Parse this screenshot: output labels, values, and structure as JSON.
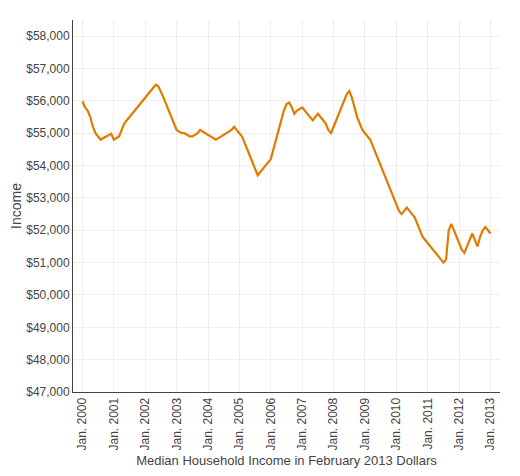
{
  "chart_data": {
    "type": "line",
    "xlabel": "Median Household Income in February 2013 Dollars",
    "ylabel": "Income",
    "color": "#E07B00",
    "grid": true,
    "xlim": [
      1999.7,
      2013.3
    ],
    "xticks": [
      {
        "value": 2000,
        "label": "Jan. 2000"
      },
      {
        "value": 2001,
        "label": "Jan. 2001"
      },
      {
        "value": 2002,
        "label": "Jan. 2002"
      },
      {
        "value": 2003,
        "label": "Jan. 2003"
      },
      {
        "value": 2004,
        "label": "Jan. 2004"
      },
      {
        "value": 2005,
        "label": "Jan. 2005"
      },
      {
        "value": 2006,
        "label": "Jan. 2006"
      },
      {
        "value": 2007,
        "label": "Jan. 2007"
      },
      {
        "value": 2008,
        "label": "Jan. 2008"
      },
      {
        "value": 2009,
        "label": "Jan. 2009"
      },
      {
        "value": 2010,
        "label": "Jan. 2010"
      },
      {
        "value": 2011,
        "label": "Jan. 2011"
      },
      {
        "value": 2012,
        "label": "Jan. 2012"
      },
      {
        "value": 2013,
        "label": "Jan. 2013"
      }
    ],
    "ylim": [
      47000,
      58500
    ],
    "yticks": [
      {
        "value": 47000,
        "label": "$47,000"
      },
      {
        "value": 48000,
        "label": "$48,000"
      },
      {
        "value": 49000,
        "label": "$49,000"
      },
      {
        "value": 50000,
        "label": "$50,000"
      },
      {
        "value": 51000,
        "label": "$51,000"
      },
      {
        "value": 52000,
        "label": "$52,000"
      },
      {
        "value": 53000,
        "label": "$53,000"
      },
      {
        "value": 54000,
        "label": "$54,000"
      },
      {
        "value": 55000,
        "label": "$55,000"
      },
      {
        "value": 56000,
        "label": "$56,000"
      },
      {
        "value": 57000,
        "label": "$57,000"
      },
      {
        "value": 58000,
        "label": "$58,000"
      }
    ],
    "x": [
      2000.0,
      2000.0833333333333,
      2000.1666666666667,
      2000.25,
      2000.3333333333333,
      2000.4166666666667,
      2000.5,
      2000.5833333333333,
      2000.6666666666667,
      2000.75,
      2000.8333333333333,
      2000.9166666666667,
      2001.0,
      2001.0833333333333,
      2001.1666666666667,
      2001.25,
      2001.3333333333333,
      2001.4166666666667,
      2001.5,
      2001.5833333333333,
      2001.6666666666667,
      2001.75,
      2001.8333333333333,
      2001.9166666666667,
      2002.0,
      2002.0833333333333,
      2002.1666666666667,
      2002.25,
      2002.3333333333333,
      2002.4166666666667,
      2002.5,
      2002.5833333333333,
      2002.6666666666667,
      2002.75,
      2002.8333333333333,
      2002.9166666666667,
      2003.0,
      2003.0833333333333,
      2003.1666666666667,
      2003.25,
      2003.3333333333333,
      2003.4166666666667,
      2003.5,
      2003.5833333333333,
      2003.6666666666667,
      2003.75,
      2003.8333333333333,
      2003.9166666666667,
      2004.0,
      2004.0833333333333,
      2004.1666666666667,
      2004.25,
      2004.3333333333333,
      2004.4166666666667,
      2004.5,
      2004.5833333333333,
      2004.6666666666667,
      2004.75,
      2004.8333333333333,
      2004.9166666666667,
      2005.0,
      2005.0833333333333,
      2005.1666666666667,
      2005.25,
      2005.3333333333333,
      2005.4166666666667,
      2005.5,
      2005.5833333333333,
      2005.6666666666667,
      2005.75,
      2005.8333333333333,
      2005.9166666666667,
      2006.0,
      2006.0833333333333,
      2006.1666666666667,
      2006.25,
      2006.3333333333333,
      2006.4166666666667,
      2006.5,
      2006.5833333333333,
      2006.6666666666667,
      2006.75,
      2006.8333333333333,
      2006.9166666666667,
      2007.0,
      2007.0833333333333,
      2007.1666666666667,
      2007.25,
      2007.3333333333333,
      2007.4166666666667,
      2007.5,
      2007.5833333333333,
      2007.6666666666667,
      2007.75,
      2007.8333333333333,
      2007.9166666666667,
      2008.0,
      2008.0833333333333,
      2008.1666666666667,
      2008.25,
      2008.3333333333333,
      2008.4166666666667,
      2008.5,
      2008.5833333333333,
      2008.6666666666667,
      2008.75,
      2008.8333333333333,
      2008.9166666666667,
      2009.0,
      2009.0833333333333,
      2009.1666666666667,
      2009.25,
      2009.3333333333333,
      2009.4166666666667,
      2009.5,
      2009.5833333333333,
      2009.6666666666667,
      2009.75,
      2009.8333333333333,
      2009.9166666666667,
      2010.0,
      2010.0833333333333,
      2010.1666666666667,
      2010.25,
      2010.3333333333333,
      2010.4166666666667,
      2010.5,
      2010.5833333333333,
      2010.6666666666667,
      2010.75,
      2010.8333333333333,
      2010.9166666666667,
      2011.0,
      2011.0833333333333,
      2011.1666666666667,
      2011.25,
      2011.3333333333333,
      2011.4166666666667,
      2011.5,
      2011.5833333333333,
      2011.6666666666667,
      2011.75,
      2011.8333333333333,
      2011.9166666666667,
      2012.0,
      2012.0833333333333,
      2012.1666666666667,
      2012.25,
      2012.3333333333333,
      2012.4166666666667,
      2012.5,
      2012.5833333333333,
      2012.6666666666667,
      2012.75,
      2012.8333333333333,
      2012.9166666666667,
      2013.0
    ],
    "values": [
      55987,
      55800,
      55700,
      55500,
      55200,
      55000,
      54900,
      54800,
      54850,
      54900,
      54950,
      54980,
      54800,
      54850,
      54900,
      55100,
      55300,
      55400,
      55500,
      55600,
      55700,
      55800,
      55900,
      56000,
      56100,
      56200,
      56300,
      56400,
      56500,
      56450,
      56300,
      56100,
      55900,
      55700,
      55500,
      55300,
      55100,
      55050,
      55000,
      55000,
      54950,
      54900,
      54900,
      54950,
      55000,
      55100,
      55050,
      55000,
      54950,
      54900,
      54850,
      54800,
      54850,
      54900,
      54950,
      55000,
      55050,
      55100,
      55200,
      55100,
      55000,
      54900,
      54700,
      54500,
      54300,
      54100,
      53900,
      53700,
      53800,
      53900,
      54000,
      54100,
      54200,
      54500,
      54800,
      55100,
      55400,
      55700,
      55900,
      55950,
      55800,
      55600,
      55700,
      55750,
      55800,
      55700,
      55600,
      55500,
      55400,
      55500,
      55600,
      55500,
      55400,
      55300,
      55100,
      55000,
      55200,
      55400,
      55600,
      55800,
      56000,
      56200,
      56300,
      56100,
      55800,
      55500,
      55300,
      55100,
      55000,
      54900,
      54800,
      54600,
      54400,
      54200,
      54000,
      53800,
      53600,
      53400,
      53200,
      53000,
      52800,
      52600,
      52500,
      52600,
      52700,
      52600,
      52500,
      52400,
      52200,
      52000,
      51800,
      51700,
      51600,
      51500,
      51400,
      51300,
      51200,
      51100,
      51000,
      51100,
      52000,
      52200,
      52000,
      51800,
      51600,
      51400,
      51300,
      51500,
      51700,
      51900,
      51700,
      51500,
      51800,
      52000,
      52100,
      52000,
      51900
    ]
  }
}
